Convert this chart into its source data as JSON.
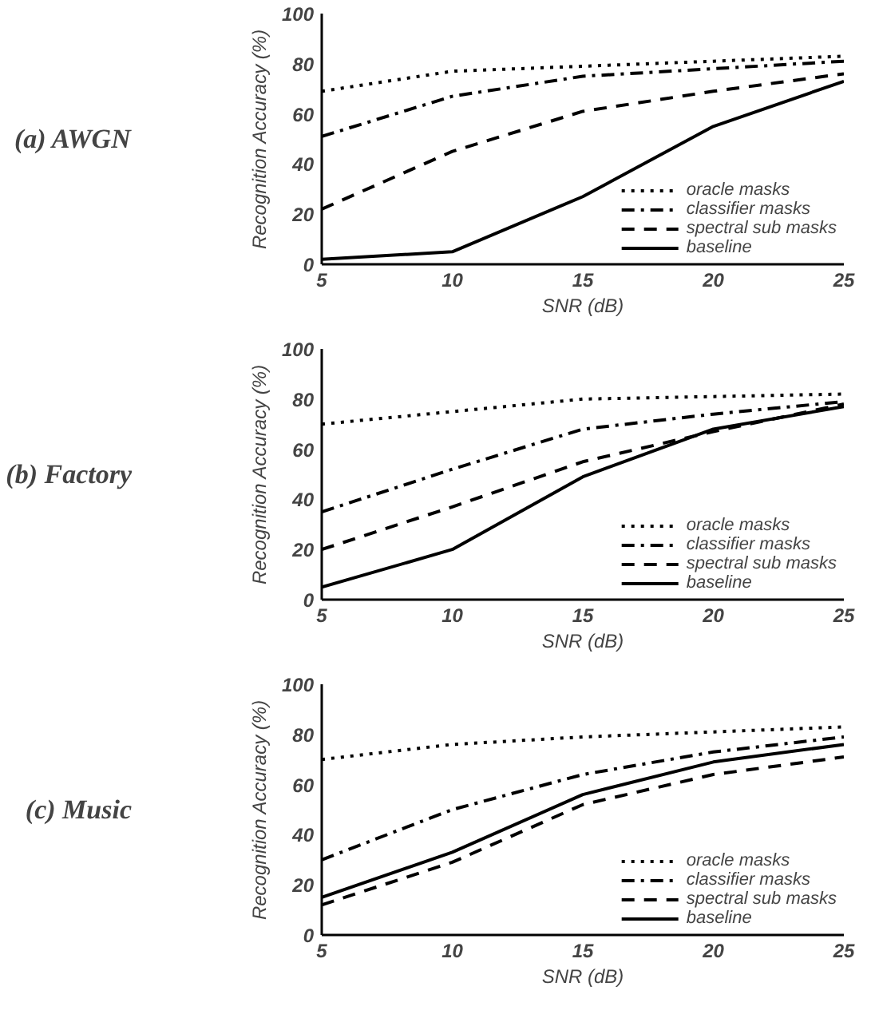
{
  "chart_data": [
    {
      "type": "line",
      "title": "(a) AWGN",
      "xlabel": "SNR (dB)",
      "ylabel": "Recognition Accuracy (%)",
      "x": [
        5,
        10,
        15,
        20,
        25
      ],
      "xlim": [
        5,
        25
      ],
      "xticks": [
        5,
        10,
        15,
        20,
        25
      ],
      "ylim": [
        0,
        100
      ],
      "yticks": [
        0,
        20,
        40,
        60,
        80,
        100
      ],
      "grid": false,
      "legend": "bottom right",
      "marker": "none",
      "series": [
        {
          "name": "oracle masks",
          "color": "#000000",
          "line_style": "dotted",
          "values": [
            69,
            77,
            79,
            81,
            83
          ]
        },
        {
          "name": "classifier masks",
          "color": "#000000",
          "line_style": "dashdot",
          "values": [
            51,
            67,
            75,
            78,
            81
          ]
        },
        {
          "name": "spectral sub masks",
          "color": "#000000",
          "line_style": "dashed",
          "values": [
            22,
            45,
            61,
            69,
            76
          ]
        },
        {
          "name": "baseline",
          "color": "#000000",
          "line_style": "solid",
          "values": [
            2,
            5,
            27,
            55,
            73
          ]
        }
      ]
    },
    {
      "type": "line",
      "title": "(b) Factory",
      "xlabel": "SNR (dB)",
      "ylabel": "Recognition Accuracy (%)",
      "x": [
        5,
        10,
        15,
        20,
        25
      ],
      "xlim": [
        5,
        25
      ],
      "xticks": [
        5,
        10,
        15,
        20,
        25
      ],
      "ylim": [
        0,
        100
      ],
      "yticks": [
        0,
        20,
        40,
        60,
        80,
        100
      ],
      "grid": false,
      "legend": "bottom right",
      "marker": "none",
      "series": [
        {
          "name": "oracle masks",
          "color": "#000000",
          "line_style": "dotted",
          "values": [
            70,
            75,
            80,
            81,
            82
          ]
        },
        {
          "name": "classifier masks",
          "color": "#000000",
          "line_style": "dashdot",
          "values": [
            35,
            52,
            68,
            74,
            79
          ]
        },
        {
          "name": "spectral sub masks",
          "color": "#000000",
          "line_style": "dashed",
          "values": [
            20,
            37,
            55,
            67,
            78
          ]
        },
        {
          "name": "baseline",
          "color": "#000000",
          "line_style": "solid",
          "values": [
            5,
            20,
            49,
            68,
            77
          ]
        }
      ]
    },
    {
      "type": "line",
      "title": "(c) Music",
      "xlabel": "SNR (dB)",
      "ylabel": "Recognition Accuracy (%)",
      "x": [
        5,
        10,
        15,
        20,
        25
      ],
      "xlim": [
        5,
        25
      ],
      "xticks": [
        5,
        10,
        15,
        20,
        25
      ],
      "ylim": [
        0,
        100
      ],
      "yticks": [
        0,
        20,
        40,
        60,
        80,
        100
      ],
      "grid": false,
      "legend": "bottom right",
      "marker": "none",
      "series": [
        {
          "name": "oracle masks",
          "color": "#000000",
          "line_style": "dotted",
          "values": [
            70,
            76,
            79,
            81,
            83
          ]
        },
        {
          "name": "classifier masks",
          "color": "#000000",
          "line_style": "dashdot",
          "values": [
            30,
            50,
            64,
            73,
            79
          ]
        },
        {
          "name": "spectral sub masks",
          "color": "#000000",
          "line_style": "dashed",
          "values": [
            12,
            29,
            52,
            64,
            71
          ]
        },
        {
          "name": "baseline",
          "color": "#000000",
          "line_style": "solid",
          "values": [
            15,
            33,
            56,
            69,
            76
          ]
        }
      ]
    }
  ]
}
